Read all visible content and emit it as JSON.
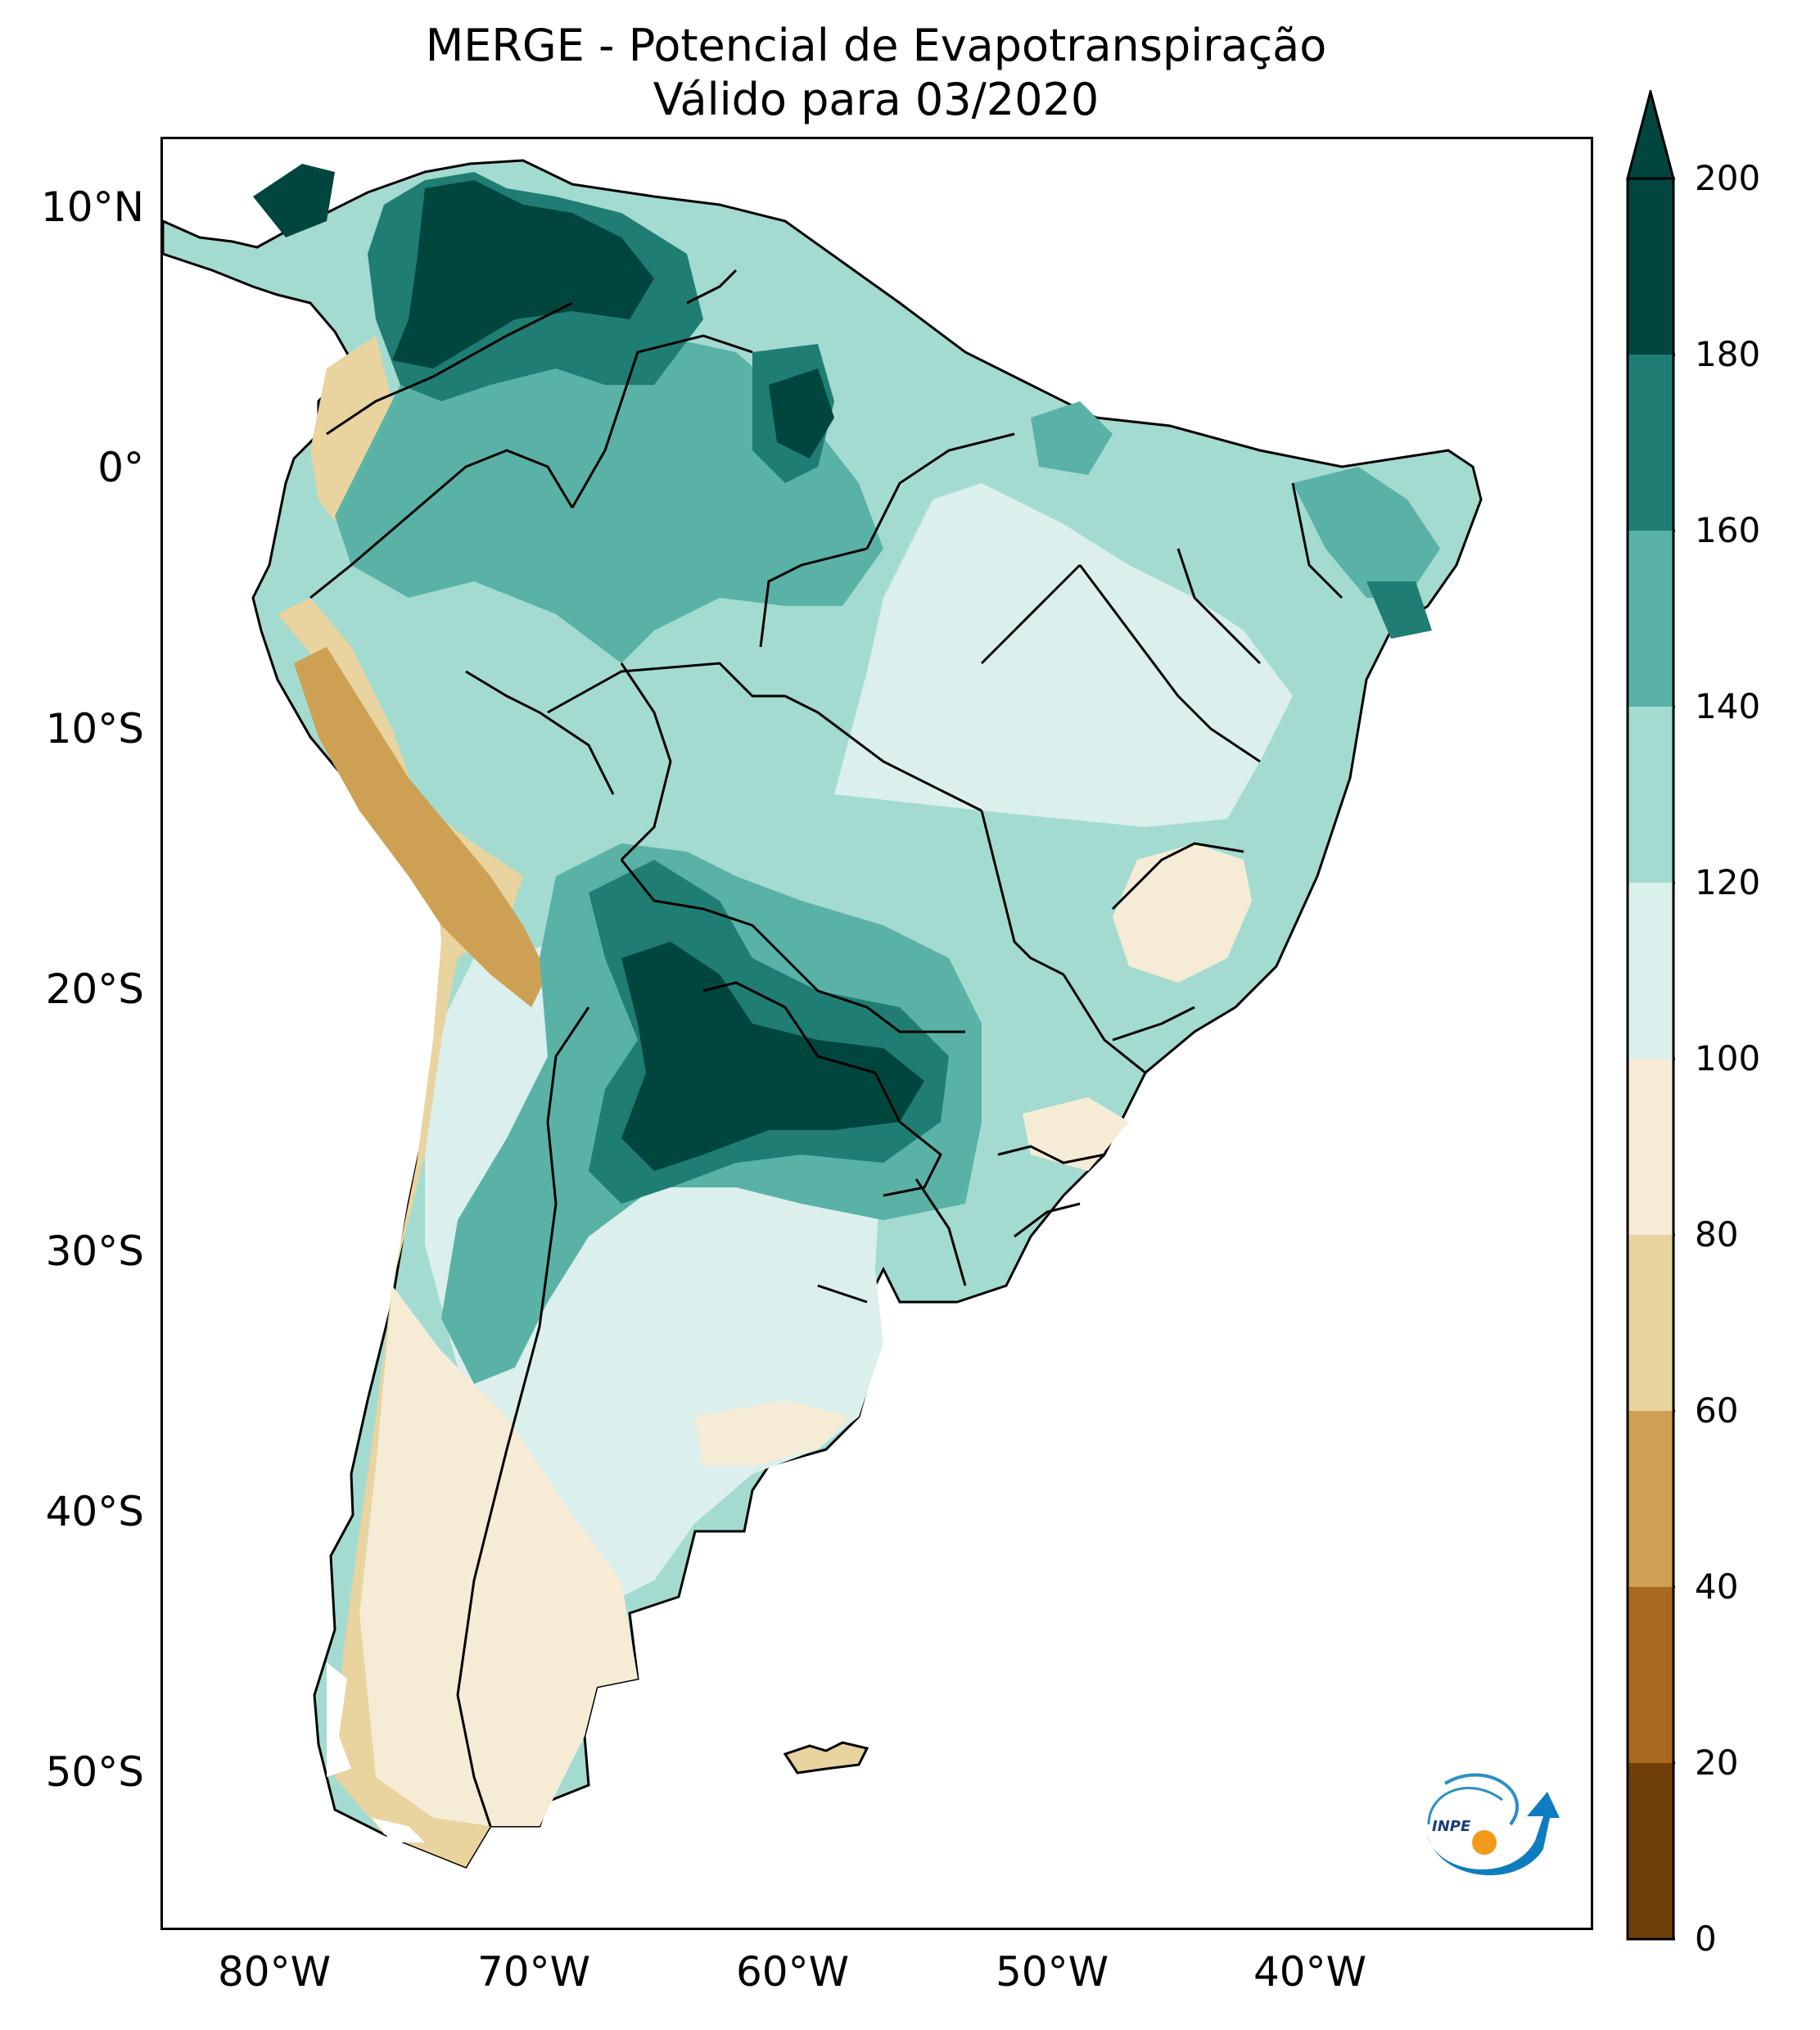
{
  "header": {
    "title_line1": "MERGE - Potencial de Evapotranspiração",
    "title_line2": "Válido para 03/2020"
  },
  "map": {
    "region": "South America",
    "lat_labels": [
      "10°N",
      "0°",
      "10°S",
      "20°S",
      "30°S",
      "40°S",
      "50°S"
    ],
    "lon_labels": [
      "80°W",
      "70°W",
      "60°W",
      "50°W",
      "40°W"
    ],
    "colors": {
      "ocean": "#ffffff",
      "border": "#000000",
      "light_teal": "#dbefec",
      "mid_teal": "#a3dbd1",
      "teal": "#5ab2a6",
      "dark_teal": "#1f7d74",
      "deepest": "#01463e",
      "cream": "#f6ecd6",
      "tan": "#e9d39e",
      "brown": "#cda053"
    }
  },
  "colorbar": {
    "ticks": [
      "0",
      "20",
      "40",
      "60",
      "80",
      "100",
      "120",
      "140",
      "160",
      "180",
      "200"
    ],
    "colors": [
      "#6f3f0b",
      "#a8691e",
      "#cda053",
      "#e9d39e",
      "#f6ecd6",
      "#dbefec",
      "#a3dbd1",
      "#5ab2a6",
      "#1f7d74",
      "#01463e"
    ],
    "extend": "max"
  },
  "logo": {
    "text": "INPE",
    "icon": "inpe-logo-icon"
  }
}
